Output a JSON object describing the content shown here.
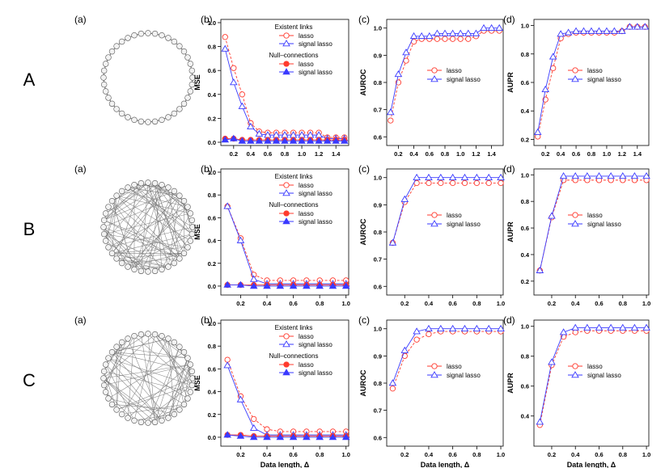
{
  "figure": {
    "row_labels": [
      "A",
      "B",
      "C"
    ],
    "panel_letters": [
      "(a)",
      "(b)",
      "(c)",
      "(d)"
    ],
    "xlabel": "Data length, Δ",
    "colors": {
      "lasso": "#ff3b2f",
      "signal": "#3a3aff",
      "axis": "#000000",
      "network": "#7a7a7a"
    }
  },
  "chart_data": [
    {
      "type": "line",
      "row": "A",
      "panel": "(b)",
      "ylabel": "MSE",
      "xlim": [
        0.05,
        1.55
      ],
      "ylim": [
        0,
        1.0
      ],
      "xticks": [
        0.2,
        0.4,
        0.6,
        0.8,
        1.0,
        1.2,
        1.4
      ],
      "xtick_labels": [
        "0.2",
        "0.4",
        "0.6",
        "0.8",
        "1.0",
        "1.2",
        "1.4"
      ],
      "yticks": [
        0,
        0.2,
        0.4,
        0.6,
        0.8,
        1.0
      ],
      "ytick_labels": [
        "0.0",
        "0.2",
        "0.4",
        "0.6",
        "0.8",
        "1.0"
      ],
      "x": [
        0.1,
        0.2,
        0.3,
        0.4,
        0.5,
        0.6,
        0.7,
        0.8,
        0.9,
        1.0,
        1.1,
        1.2,
        1.3,
        1.4,
        1.5
      ],
      "legend_groups": [
        "Existent links",
        "Null–connections"
      ],
      "series": [
        {
          "name": "lasso",
          "group": "Existent links",
          "color": "lasso",
          "marker": "circle-open",
          "values": [
            0.88,
            0.62,
            0.4,
            0.16,
            0.09,
            0.08,
            0.08,
            0.08,
            0.08,
            0.08,
            0.08,
            0.08,
            0.04,
            0.04,
            0.04
          ]
        },
        {
          "name": "signal lasso",
          "group": "Existent links",
          "color": "signal",
          "marker": "triangle-open",
          "values": [
            0.78,
            0.5,
            0.3,
            0.13,
            0.07,
            0.06,
            0.06,
            0.06,
            0.06,
            0.06,
            0.06,
            0.06,
            0.03,
            0.03,
            0.03
          ]
        },
        {
          "name": "lasso",
          "group": "Null–connections",
          "color": "lasso",
          "marker": "circle-filled",
          "values": [
            0.03,
            0.03,
            0.02,
            0.02,
            0.02,
            0.02,
            0.02,
            0.02,
            0.02,
            0.02,
            0.02,
            0.02,
            0.02,
            0.02,
            0.02
          ]
        },
        {
          "name": "signal lasso",
          "group": "Null–connections",
          "color": "signal",
          "marker": "triangle-filled",
          "values": [
            0.02,
            0.03,
            0.01,
            0.01,
            0.01,
            0.01,
            0.01,
            0.01,
            0.01,
            0.01,
            0.01,
            0.01,
            0.01,
            0.01,
            0.01
          ]
        }
      ]
    },
    {
      "type": "line",
      "row": "A",
      "panel": "(c)",
      "ylabel": "AUROC",
      "xlim": [
        0.05,
        1.55
      ],
      "ylim": [
        0.58,
        1.02
      ],
      "xticks": [
        0.2,
        0.4,
        0.6,
        0.8,
        1.0,
        1.2,
        1.4
      ],
      "xtick_labels": [
        "0.2",
        "0.4",
        "0.6",
        "0.8",
        "1.0",
        "1.2",
        "1.4"
      ],
      "yticks": [
        0.6,
        0.7,
        0.8,
        0.9,
        1.0
      ],
      "ytick_labels": [
        "0.6",
        "0.7",
        "0.8",
        "0.9",
        "1.0"
      ],
      "x": [
        0.1,
        0.2,
        0.3,
        0.4,
        0.5,
        0.6,
        0.7,
        0.8,
        0.9,
        1.0,
        1.1,
        1.2,
        1.3,
        1.4,
        1.5
      ],
      "series": [
        {
          "name": "lasso",
          "color": "lasso",
          "marker": "circle-open",
          "values": [
            0.66,
            0.8,
            0.88,
            0.95,
            0.96,
            0.96,
            0.96,
            0.96,
            0.96,
            0.96,
            0.96,
            0.97,
            0.99,
            0.99,
            0.99
          ]
        },
        {
          "name": "signal lasso",
          "color": "signal",
          "marker": "triangle-open",
          "values": [
            0.69,
            0.83,
            0.91,
            0.97,
            0.97,
            0.97,
            0.98,
            0.98,
            0.98,
            0.98,
            0.98,
            0.98,
            1.0,
            1.0,
            1.0
          ]
        }
      ]
    },
    {
      "type": "line",
      "row": "A",
      "panel": "(d)",
      "ylabel": "AUPR",
      "xlim": [
        0.05,
        1.55
      ],
      "ylim": [
        0.18,
        1.02
      ],
      "xticks": [
        0.2,
        0.4,
        0.6,
        0.8,
        1.0,
        1.2,
        1.4
      ],
      "xtick_labels": [
        "0.2",
        "0.4",
        "0.6",
        "0.8",
        "1.0",
        "1.2",
        "1.4"
      ],
      "yticks": [
        0.2,
        0.4,
        0.6,
        0.8,
        1.0
      ],
      "ytick_labels": [
        "0.2",
        "0.4",
        "0.6",
        "0.8",
        "1.0"
      ],
      "x": [
        0.1,
        0.2,
        0.3,
        0.4,
        0.5,
        0.6,
        0.7,
        0.8,
        0.9,
        1.0,
        1.1,
        1.2,
        1.3,
        1.4,
        1.5
      ],
      "series": [
        {
          "name": "lasso",
          "color": "lasso",
          "marker": "circle-open",
          "values": [
            0.22,
            0.48,
            0.7,
            0.91,
            0.94,
            0.95,
            0.95,
            0.95,
            0.95,
            0.95,
            0.95,
            0.96,
            0.99,
            0.99,
            0.99
          ]
        },
        {
          "name": "signal lasso",
          "color": "signal",
          "marker": "triangle-open",
          "values": [
            0.25,
            0.55,
            0.78,
            0.94,
            0.95,
            0.96,
            0.96,
            0.96,
            0.96,
            0.96,
            0.96,
            0.96,
            0.99,
            0.99,
            0.99
          ]
        }
      ]
    },
    {
      "type": "line",
      "row": "B",
      "panel": "(b)",
      "ylabel": "MSE",
      "xlim": [
        0.05,
        1.02
      ],
      "ylim": [
        -0.05,
        1.0
      ],
      "xticks": [
        0.2,
        0.4,
        0.6,
        0.8,
        1.0
      ],
      "xtick_labels": [
        "0.2",
        "0.4",
        "0.6",
        "0.8",
        "1.0"
      ],
      "yticks": [
        0,
        0.2,
        0.4,
        0.6,
        0.8,
        1.0
      ],
      "ytick_labels": [
        "0.0",
        "0.2",
        "0.4",
        "0.6",
        "0.8",
        "1.0"
      ],
      "x": [
        0.1,
        0.2,
        0.3,
        0.4,
        0.5,
        0.6,
        0.7,
        0.8,
        0.9,
        1.0
      ],
      "legend_groups": [
        "Existent links",
        "Null–connections"
      ],
      "series": [
        {
          "name": "lasso",
          "group": "Existent links",
          "color": "lasso",
          "marker": "circle-open",
          "values": [
            0.7,
            0.42,
            0.1,
            0.05,
            0.05,
            0.05,
            0.05,
            0.05,
            0.05,
            0.05
          ]
        },
        {
          "name": "signal lasso",
          "group": "Existent links",
          "color": "signal",
          "marker": "triangle-open",
          "values": [
            0.7,
            0.4,
            0.06,
            0.02,
            0.02,
            0.02,
            0.02,
            0.02,
            0.02,
            0.02
          ]
        },
        {
          "name": "lasso",
          "group": "Null–connections",
          "color": "lasso",
          "marker": "circle-filled",
          "values": [
            0.01,
            0.01,
            0.01,
            0.01,
            0.01,
            0.01,
            0.01,
            0.01,
            0.01,
            0.01
          ]
        },
        {
          "name": "signal lasso",
          "group": "Null–connections",
          "color": "signal",
          "marker": "triangle-filled",
          "values": [
            0.01,
            0.01,
            0.0,
            0.0,
            0.0,
            0.0,
            0.0,
            0.0,
            0.0,
            0.0
          ]
        }
      ]
    },
    {
      "type": "line",
      "row": "B",
      "panel": "(c)",
      "ylabel": "AUROC",
      "xlim": [
        0.05,
        1.02
      ],
      "ylim": [
        0.58,
        1.02
      ],
      "xticks": [
        0.2,
        0.4,
        0.6,
        0.8,
        1.0
      ],
      "xtick_labels": [
        "0.2",
        "0.4",
        "0.6",
        "0.8",
        "1.0"
      ],
      "yticks": [
        0.6,
        0.7,
        0.8,
        0.9,
        1.0
      ],
      "ytick_labels": [
        "0.6",
        "0.7",
        "0.8",
        "0.9",
        "1.0"
      ],
      "x": [
        0.1,
        0.2,
        0.3,
        0.4,
        0.5,
        0.6,
        0.7,
        0.8,
        0.9,
        1.0
      ],
      "series": [
        {
          "name": "lasso",
          "color": "lasso",
          "marker": "circle-open",
          "values": [
            0.76,
            0.91,
            0.98,
            0.98,
            0.98,
            0.98,
            0.98,
            0.98,
            0.98,
            0.98
          ]
        },
        {
          "name": "signal lasso",
          "color": "signal",
          "marker": "triangle-open",
          "values": [
            0.76,
            0.92,
            1.0,
            1.0,
            1.0,
            1.0,
            1.0,
            1.0,
            1.0,
            1.0
          ]
        }
      ]
    },
    {
      "type": "line",
      "row": "B",
      "panel": "(d)",
      "ylabel": "AUPR",
      "xlim": [
        0.05,
        1.02
      ],
      "ylim": [
        0.12,
        1.02
      ],
      "xticks": [
        0.2,
        0.4,
        0.6,
        0.8,
        1.0
      ],
      "xtick_labels": [
        "0.2",
        "0.4",
        "0.6",
        "0.8",
        "1.0"
      ],
      "yticks": [
        0.2,
        0.4,
        0.6,
        0.8,
        1.0
      ],
      "ytick_labels": [
        "0.2",
        "0.4",
        "0.6",
        "0.8",
        "1.0"
      ],
      "x": [
        0.1,
        0.2,
        0.3,
        0.4,
        0.5,
        0.6,
        0.7,
        0.8,
        0.9,
        1.0
      ],
      "series": [
        {
          "name": "lasso",
          "color": "lasso",
          "marker": "circle-open",
          "values": [
            0.28,
            0.68,
            0.96,
            0.96,
            0.96,
            0.96,
            0.96,
            0.96,
            0.96,
            0.96
          ]
        },
        {
          "name": "signal lasso",
          "color": "signal",
          "marker": "triangle-open",
          "values": [
            0.28,
            0.69,
            0.99,
            0.99,
            0.99,
            0.99,
            0.99,
            0.99,
            0.99,
            0.99
          ]
        }
      ]
    },
    {
      "type": "line",
      "row": "C",
      "panel": "(b)",
      "ylabel": "MSE",
      "xlim": [
        0.05,
        1.02
      ],
      "ylim": [
        -0.05,
        1.0
      ],
      "xticks": [
        0.2,
        0.4,
        0.6,
        0.8,
        1.0
      ],
      "xtick_labels": [
        "0.2",
        "0.4",
        "0.6",
        "0.8",
        "1.0"
      ],
      "yticks": [
        0,
        0.2,
        0.4,
        0.6,
        0.8,
        1.0
      ],
      "ytick_labels": [
        "0.0",
        "0.2",
        "0.4",
        "0.6",
        "0.8",
        "1.0"
      ],
      "x": [
        0.1,
        0.2,
        0.3,
        0.4,
        0.5,
        0.6,
        0.7,
        0.8,
        0.9,
        1.0
      ],
      "legend_groups": [
        "Existent links",
        "Null–connections"
      ],
      "series": [
        {
          "name": "lasso",
          "group": "Existent links",
          "color": "lasso",
          "marker": "circle-open",
          "values": [
            0.68,
            0.36,
            0.16,
            0.07,
            0.05,
            0.05,
            0.05,
            0.05,
            0.05,
            0.05
          ]
        },
        {
          "name": "signal lasso",
          "group": "Existent links",
          "color": "signal",
          "marker": "triangle-open",
          "values": [
            0.63,
            0.33,
            0.08,
            0.02,
            0.02,
            0.02,
            0.02,
            0.02,
            0.02,
            0.02
          ]
        },
        {
          "name": "lasso",
          "group": "Null–connections",
          "color": "lasso",
          "marker": "circle-filled",
          "values": [
            0.02,
            0.02,
            0.01,
            0.01,
            0.01,
            0.01,
            0.01,
            0.01,
            0.01,
            0.01
          ]
        },
        {
          "name": "signal lasso",
          "group": "Null–connections",
          "color": "signal",
          "marker": "triangle-filled",
          "values": [
            0.02,
            0.01,
            0.0,
            0.0,
            0.0,
            0.0,
            0.0,
            0.0,
            0.0,
            0.0
          ]
        }
      ]
    },
    {
      "type": "line",
      "row": "C",
      "panel": "(c)",
      "ylabel": "AUROC",
      "xlim": [
        0.05,
        1.02
      ],
      "ylim": [
        0.58,
        1.02
      ],
      "xticks": [
        0.2,
        0.4,
        0.6,
        0.8,
        1.0
      ],
      "xtick_labels": [
        "0.2",
        "0.4",
        "0.6",
        "0.8",
        "1.0"
      ],
      "yticks": [
        0.6,
        0.7,
        0.8,
        0.9,
        1.0
      ],
      "ytick_labels": [
        "0.6",
        "0.7",
        "0.8",
        "0.9",
        "1.0"
      ],
      "x": [
        0.1,
        0.2,
        0.3,
        0.4,
        0.5,
        0.6,
        0.7,
        0.8,
        0.9,
        1.0
      ],
      "series": [
        {
          "name": "lasso",
          "color": "lasso",
          "marker": "circle-open",
          "values": [
            0.78,
            0.9,
            0.96,
            0.98,
            0.99,
            0.99,
            0.99,
            0.99,
            0.99,
            0.99
          ]
        },
        {
          "name": "signal lasso",
          "color": "signal",
          "marker": "triangle-open",
          "values": [
            0.8,
            0.92,
            0.99,
            1.0,
            1.0,
            1.0,
            1.0,
            1.0,
            1.0,
            1.0
          ]
        }
      ]
    },
    {
      "type": "line",
      "row": "C",
      "panel": "(d)",
      "ylabel": "AUPR",
      "xlim": [
        0.05,
        1.02
      ],
      "ylim": [
        0.22,
        1.02
      ],
      "xticks": [
        0.2,
        0.4,
        0.6,
        0.8,
        1.0
      ],
      "xtick_labels": [
        "0.2",
        "0.4",
        "0.6",
        "0.8",
        "1.0"
      ],
      "yticks": [
        0.4,
        0.6,
        0.8,
        1.0
      ],
      "ytick_labels": [
        "0.4",
        "0.6",
        "0.8",
        "1.0"
      ],
      "x": [
        0.1,
        0.2,
        0.3,
        0.4,
        0.5,
        0.6,
        0.7,
        0.8,
        0.9,
        1.0
      ],
      "series": [
        {
          "name": "lasso",
          "color": "lasso",
          "marker": "circle-open",
          "values": [
            0.34,
            0.74,
            0.93,
            0.96,
            0.97,
            0.97,
            0.97,
            0.97,
            0.97,
            0.97
          ]
        },
        {
          "name": "signal lasso",
          "color": "signal",
          "marker": "triangle-open",
          "values": [
            0.36,
            0.76,
            0.96,
            0.99,
            0.99,
            0.99,
            0.99,
            0.99,
            0.99,
            0.99
          ]
        }
      ]
    }
  ]
}
